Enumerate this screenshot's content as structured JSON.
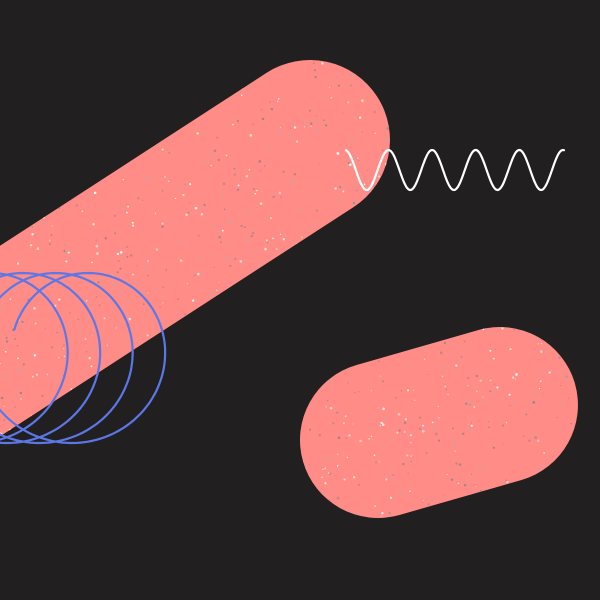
{
  "artwork": {
    "background_color": "#221f20",
    "pill_color": "#ff8c87",
    "coil_color": "#5c77e6",
    "wave_color": "#ffffff",
    "speckle_colors": [
      "#ffffff",
      "#b9a8a8",
      "#8e8585"
    ],
    "shapes": [
      {
        "name": "large-diagonal-pill",
        "kind": "pill"
      },
      {
        "name": "small-diagonal-pill",
        "kind": "pill"
      },
      {
        "name": "blue-coil-spring",
        "kind": "looped-line"
      },
      {
        "name": "white-sine-wave",
        "kind": "wave"
      }
    ]
  }
}
